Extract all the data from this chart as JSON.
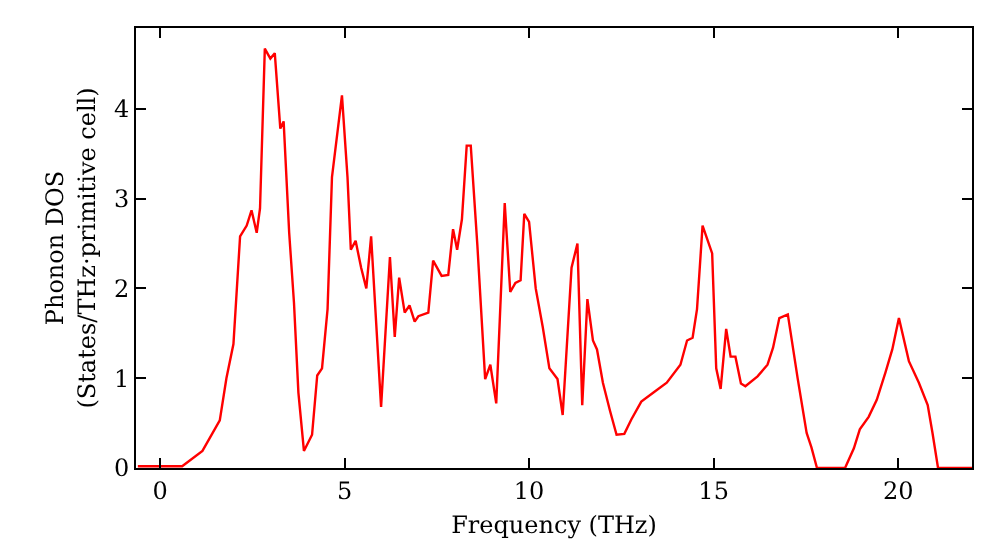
{
  "chart_data": {
    "type": "line",
    "xlabel": "Frequency (THz)",
    "ylabel": "Phonon DOS\n(States/THz·primitive cell)",
    "xlim": [
      -0.65,
      22
    ],
    "ylim": [
      0,
      4.9
    ],
    "xticks": [
      0,
      5,
      10,
      15,
      20
    ],
    "yticks": [
      0,
      1,
      2,
      3,
      4
    ],
    "marker": "none",
    "line_style": "solid",
    "x": [
      -0.6,
      0.6,
      1.15,
      1.62,
      1.8,
      1.99,
      2.17,
      2.35,
      2.48,
      2.62,
      2.71,
      2.84,
      2.99,
      3.11,
      3.26,
      3.35,
      3.5,
      3.63,
      3.75,
      3.9,
      4.12,
      4.26,
      4.39,
      4.54,
      4.66,
      4.93,
      5.08,
      5.17,
      5.3,
      5.45,
      5.59,
      5.72,
      5.99,
      6.23,
      6.36,
      6.48,
      6.63,
      6.76,
      6.9,
      7.0,
      7.27,
      7.4,
      7.63,
      7.81,
      7.94,
      8.05,
      8.18,
      8.31,
      8.42,
      8.6,
      8.81,
      8.95,
      9.11,
      9.34,
      9.49,
      9.63,
      9.77,
      9.87,
      10.0,
      10.18,
      10.37,
      10.55,
      10.77,
      10.91,
      11.15,
      11.31,
      11.44,
      11.58,
      11.73,
      11.84,
      12.0,
      12.19,
      12.37,
      12.58,
      12.77,
      13.04,
      13.37,
      13.73,
      14.1,
      14.28,
      14.43,
      14.55,
      14.7,
      14.96,
      15.07,
      15.19,
      15.34,
      15.46,
      15.59,
      15.74,
      15.86,
      16.19,
      16.46,
      16.61,
      16.78,
      17.01,
      17.28,
      17.52,
      17.65,
      17.8,
      18.56,
      18.8,
      18.96,
      19.2,
      19.42,
      19.66,
      19.84,
      20.02,
      20.29,
      20.56,
      20.8,
      20.93,
      21.08,
      22.0
    ],
    "series": [
      {
        "color": "#ff0000",
        "values": [
          0.02,
          0.02,
          0.19,
          0.53,
          1.0,
          1.38,
          2.58,
          2.7,
          2.87,
          2.62,
          2.89,
          4.67,
          4.56,
          4.62,
          3.78,
          3.86,
          2.62,
          1.84,
          0.84,
          0.19,
          0.37,
          1.03,
          1.11,
          1.77,
          3.24,
          4.15,
          3.24,
          2.43,
          2.53,
          2.23,
          2.0,
          2.58,
          0.68,
          2.35,
          1.46,
          2.12,
          1.73,
          1.81,
          1.63,
          1.69,
          1.73,
          2.31,
          2.14,
          2.15,
          2.66,
          2.43,
          2.77,
          3.59,
          3.59,
          2.47,
          0.99,
          1.15,
          0.72,
          2.95,
          1.96,
          2.06,
          2.09,
          2.83,
          2.74,
          2.0,
          1.57,
          1.11,
          0.99,
          0.59,
          2.23,
          2.5,
          0.7,
          1.88,
          1.42,
          1.32,
          0.95,
          0.64,
          0.37,
          0.38,
          0.54,
          0.74,
          0.84,
          0.95,
          1.15,
          1.42,
          1.45,
          1.77,
          2.7,
          2.39,
          1.11,
          0.88,
          1.55,
          1.24,
          1.24,
          0.94,
          0.91,
          1.02,
          1.15,
          1.34,
          1.67,
          1.71,
          0.99,
          0.39,
          0.23,
          0,
          0,
          0.22,
          0.43,
          0.57,
          0.76,
          1.07,
          1.32,
          1.67,
          1.19,
          0.95,
          0.7,
          0.39,
          0,
          0
        ]
      }
    ]
  }
}
